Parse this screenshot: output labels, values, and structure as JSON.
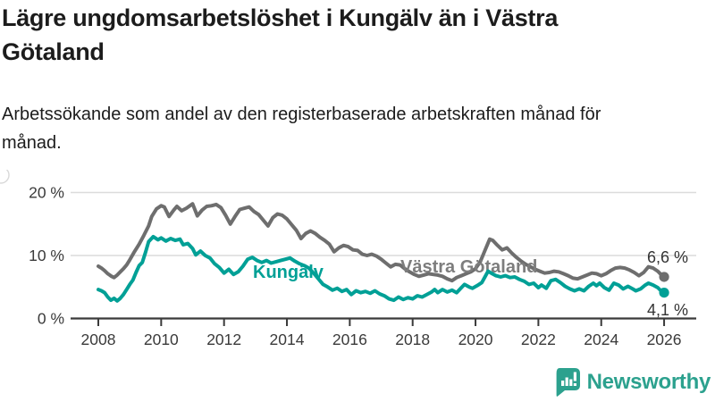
{
  "header": {
    "title": "Lägre ungdomsarbetslöshet i Kungälv än i Västra Götaland",
    "subtitle": "Arbetssökande som andel av den registerbaserade arbetskraften månad för månad."
  },
  "branding": {
    "logo_text": "Newsworthy",
    "logo_icon": "bar-chart-speech-bubble-icon",
    "logo_color": "#2ca18e"
  },
  "chart_data": {
    "type": "line",
    "title": "",
    "xlabel": "",
    "ylabel": "",
    "xlim": [
      2007.1,
      2027.0
    ],
    "ylim": [
      0,
      21
    ],
    "grid": "horizontal",
    "legend_position": "inline-labels",
    "colors": {
      "axis": "#3a3a3a",
      "gridline": "#dcdcdc",
      "tick_label": "#3a3a3a",
      "end_label": "#333333"
    },
    "y_axis": {
      "gridline_ticks": [
        {
          "value": 20,
          "label": "20 %"
        },
        {
          "value": 10,
          "label": "10 %"
        },
        {
          "value": 0,
          "label": "0 %"
        }
      ]
    },
    "x_axis": {
      "ticks": [
        {
          "value": 2008,
          "label": "2008"
        },
        {
          "value": 2010,
          "label": "2010"
        },
        {
          "value": 2012,
          "label": "2012"
        },
        {
          "value": 2014,
          "label": "2014"
        },
        {
          "value": 2016,
          "label": "2016"
        },
        {
          "value": 2018,
          "label": "2018"
        },
        {
          "value": 2020,
          "label": "2020"
        },
        {
          "value": 2022,
          "label": "2022"
        },
        {
          "value": 2024,
          "label": "2024"
        },
        {
          "value": 2026,
          "label": "2026"
        }
      ]
    },
    "series": [
      {
        "name": "Västra Götaland",
        "color": "#6e6e6e",
        "label": {
          "text": "Västra Götaland",
          "x": 448,
          "y": 115,
          "color": "#7d7d7d"
        },
        "end_label": {
          "text": "6,6 %",
          "x": 770,
          "y": 104
        },
        "end_value": 6.6,
        "points": [
          [
            2008.0,
            8.3
          ],
          [
            2008.1,
            8.0
          ],
          [
            2008.2,
            7.6
          ],
          [
            2008.3,
            7.1
          ],
          [
            2008.42,
            6.7
          ],
          [
            2008.5,
            6.5
          ],
          [
            2008.6,
            6.9
          ],
          [
            2008.7,
            7.4
          ],
          [
            2008.8,
            7.9
          ],
          [
            2008.9,
            8.5
          ],
          [
            2009.0,
            9.3
          ],
          [
            2009.15,
            10.6
          ],
          [
            2009.3,
            11.8
          ],
          [
            2009.45,
            13.2
          ],
          [
            2009.6,
            14.7
          ],
          [
            2009.7,
            16.2
          ],
          [
            2009.85,
            17.4
          ],
          [
            2010.0,
            17.9
          ],
          [
            2010.1,
            17.7
          ],
          [
            2010.25,
            16.2
          ],
          [
            2010.4,
            17.2
          ],
          [
            2010.5,
            17.8
          ],
          [
            2010.65,
            17.1
          ],
          [
            2010.8,
            17.5
          ],
          [
            2011.0,
            18.2
          ],
          [
            2011.15,
            16.3
          ],
          [
            2011.3,
            17.2
          ],
          [
            2011.45,
            17.8
          ],
          [
            2011.6,
            17.9
          ],
          [
            2011.75,
            18.1
          ],
          [
            2011.9,
            17.6
          ],
          [
            2012.05,
            16.4
          ],
          [
            2012.2,
            15.0
          ],
          [
            2012.35,
            16.2
          ],
          [
            2012.5,
            17.3
          ],
          [
            2012.65,
            17.5
          ],
          [
            2012.8,
            17.7
          ],
          [
            2012.95,
            17.0
          ],
          [
            2013.1,
            16.5
          ],
          [
            2013.25,
            15.6
          ],
          [
            2013.4,
            14.7
          ],
          [
            2013.55,
            16.0
          ],
          [
            2013.7,
            16.6
          ],
          [
            2013.85,
            16.4
          ],
          [
            2014.0,
            15.8
          ],
          [
            2014.15,
            14.9
          ],
          [
            2014.3,
            14.0
          ],
          [
            2014.45,
            12.7
          ],
          [
            2014.6,
            13.5
          ],
          [
            2014.75,
            13.9
          ],
          [
            2014.9,
            13.5
          ],
          [
            2015.05,
            12.9
          ],
          [
            2015.2,
            12.4
          ],
          [
            2015.35,
            11.8
          ],
          [
            2015.5,
            10.6
          ],
          [
            2015.65,
            11.2
          ],
          [
            2015.8,
            11.6
          ],
          [
            2015.95,
            11.4
          ],
          [
            2016.1,
            10.9
          ],
          [
            2016.25,
            10.8
          ],
          [
            2016.4,
            10.2
          ],
          [
            2016.55,
            10.0
          ],
          [
            2016.7,
            10.2
          ],
          [
            2016.85,
            9.9
          ],
          [
            2017.0,
            9.4
          ],
          [
            2017.15,
            8.8
          ],
          [
            2017.3,
            8.2
          ],
          [
            2017.45,
            8.6
          ],
          [
            2017.6,
            8.5
          ],
          [
            2017.75,
            7.9
          ],
          [
            2017.9,
            7.4
          ],
          [
            2018.05,
            7.0
          ],
          [
            2018.2,
            6.7
          ],
          [
            2018.35,
            6.9
          ],
          [
            2018.5,
            7.1
          ],
          [
            2018.65,
            7.0
          ],
          [
            2018.8,
            6.9
          ],
          [
            2018.95,
            6.7
          ],
          [
            2019.1,
            6.3
          ],
          [
            2019.25,
            6.0
          ],
          [
            2019.4,
            6.5
          ],
          [
            2019.55,
            6.8
          ],
          [
            2019.7,
            7.1
          ],
          [
            2019.85,
            7.4
          ],
          [
            2020.0,
            7.9
          ],
          [
            2020.15,
            9.0
          ],
          [
            2020.3,
            10.8
          ],
          [
            2020.45,
            12.6
          ],
          [
            2020.55,
            12.4
          ],
          [
            2020.7,
            11.6
          ],
          [
            2020.85,
            10.9
          ],
          [
            2021.0,
            11.2
          ],
          [
            2021.15,
            10.4
          ],
          [
            2021.3,
            9.7
          ],
          [
            2021.45,
            9.1
          ],
          [
            2021.6,
            8.6
          ],
          [
            2021.75,
            8.2
          ],
          [
            2021.9,
            7.8
          ],
          [
            2022.05,
            7.5
          ],
          [
            2022.2,
            7.2
          ],
          [
            2022.35,
            7.3
          ],
          [
            2022.5,
            7.5
          ],
          [
            2022.65,
            7.4
          ],
          [
            2022.8,
            7.1
          ],
          [
            2022.95,
            6.8
          ],
          [
            2023.1,
            6.4
          ],
          [
            2023.25,
            6.3
          ],
          [
            2023.4,
            6.6
          ],
          [
            2023.55,
            6.9
          ],
          [
            2023.7,
            7.2
          ],
          [
            2023.85,
            7.1
          ],
          [
            2024.0,
            6.8
          ],
          [
            2024.15,
            7.1
          ],
          [
            2024.3,
            7.6
          ],
          [
            2024.45,
            8.0
          ],
          [
            2024.6,
            8.1
          ],
          [
            2024.75,
            8.0
          ],
          [
            2024.9,
            7.7
          ],
          [
            2025.05,
            7.3
          ],
          [
            2025.2,
            6.8
          ],
          [
            2025.35,
            7.3
          ],
          [
            2025.5,
            8.2
          ],
          [
            2025.65,
            8.0
          ],
          [
            2025.8,
            7.5
          ],
          [
            2025.9,
            7.0
          ],
          [
            2026.0,
            6.6
          ]
        ]
      },
      {
        "name": "Kungälv",
        "color": "#00a096",
        "label": {
          "text": "Kungälv",
          "x": 283,
          "y": 121,
          "color": "#00a096"
        },
        "end_label": {
          "text": "4,1 %",
          "x": 770,
          "y": 163
        },
        "end_value": 4.1,
        "points": [
          [
            2008.0,
            4.6
          ],
          [
            2008.1,
            4.4
          ],
          [
            2008.2,
            4.1
          ],
          [
            2008.3,
            3.4
          ],
          [
            2008.4,
            2.9
          ],
          [
            2008.5,
            3.2
          ],
          [
            2008.6,
            2.8
          ],
          [
            2008.7,
            3.2
          ],
          [
            2008.8,
            3.8
          ],
          [
            2008.9,
            4.6
          ],
          [
            2009.0,
            5.4
          ],
          [
            2009.1,
            6.1
          ],
          [
            2009.2,
            7.3
          ],
          [
            2009.3,
            8.4
          ],
          [
            2009.4,
            8.9
          ],
          [
            2009.5,
            10.5
          ],
          [
            2009.6,
            12.2
          ],
          [
            2009.75,
            13.0
          ],
          [
            2009.9,
            12.5
          ],
          [
            2010.0,
            12.8
          ],
          [
            2010.15,
            12.3
          ],
          [
            2010.3,
            12.7
          ],
          [
            2010.45,
            12.4
          ],
          [
            2010.6,
            12.6
          ],
          [
            2010.7,
            11.7
          ],
          [
            2010.85,
            11.9
          ],
          [
            2011.0,
            11.1
          ],
          [
            2011.1,
            10.1
          ],
          [
            2011.25,
            10.7
          ],
          [
            2011.4,
            10.0
          ],
          [
            2011.55,
            9.6
          ],
          [
            2011.7,
            8.7
          ],
          [
            2011.85,
            8.1
          ],
          [
            2012.0,
            7.2
          ],
          [
            2012.15,
            7.8
          ],
          [
            2012.3,
            7.0
          ],
          [
            2012.45,
            7.4
          ],
          [
            2012.6,
            8.3
          ],
          [
            2012.75,
            9.4
          ],
          [
            2012.9,
            9.7
          ],
          [
            2013.05,
            9.2
          ],
          [
            2013.2,
            8.9
          ],
          [
            2013.35,
            9.2
          ],
          [
            2013.5,
            8.8
          ],
          [
            2013.65,
            9.0
          ],
          [
            2013.8,
            9.2
          ],
          [
            2013.95,
            9.4
          ],
          [
            2014.1,
            9.6
          ],
          [
            2014.25,
            9.1
          ],
          [
            2014.4,
            8.7
          ],
          [
            2014.55,
            8.4
          ],
          [
            2014.7,
            8.0
          ],
          [
            2014.85,
            7.2
          ],
          [
            2015.0,
            6.3
          ],
          [
            2015.15,
            5.4
          ],
          [
            2015.3,
            5.0
          ],
          [
            2015.45,
            4.5
          ],
          [
            2015.6,
            4.8
          ],
          [
            2015.75,
            4.3
          ],
          [
            2015.9,
            4.6
          ],
          [
            2016.05,
            3.8
          ],
          [
            2016.2,
            4.4
          ],
          [
            2016.35,
            4.1
          ],
          [
            2016.5,
            4.3
          ],
          [
            2016.65,
            4.0
          ],
          [
            2016.8,
            4.4
          ],
          [
            2016.95,
            3.9
          ],
          [
            2017.1,
            3.6
          ],
          [
            2017.25,
            3.1
          ],
          [
            2017.4,
            2.9
          ],
          [
            2017.55,
            3.4
          ],
          [
            2017.7,
            3.0
          ],
          [
            2017.85,
            3.3
          ],
          [
            2018.0,
            3.1
          ],
          [
            2018.15,
            3.6
          ],
          [
            2018.3,
            3.4
          ],
          [
            2018.45,
            3.8
          ],
          [
            2018.6,
            4.2
          ],
          [
            2018.7,
            4.6
          ],
          [
            2018.8,
            4.1
          ],
          [
            2018.95,
            4.6
          ],
          [
            2019.1,
            4.2
          ],
          [
            2019.25,
            4.5
          ],
          [
            2019.4,
            4.1
          ],
          [
            2019.55,
            4.9
          ],
          [
            2019.65,
            5.4
          ],
          [
            2019.8,
            5.0
          ],
          [
            2019.9,
            4.8
          ],
          [
            2020.05,
            5.2
          ],
          [
            2020.2,
            5.7
          ],
          [
            2020.3,
            6.6
          ],
          [
            2020.4,
            7.5
          ],
          [
            2020.5,
            7.2
          ],
          [
            2020.65,
            6.8
          ],
          [
            2020.8,
            6.6
          ],
          [
            2020.95,
            6.8
          ],
          [
            2021.1,
            6.5
          ],
          [
            2021.25,
            6.6
          ],
          [
            2021.4,
            6.2
          ],
          [
            2021.55,
            5.9
          ],
          [
            2021.7,
            5.4
          ],
          [
            2021.85,
            5.6
          ],
          [
            2022.0,
            4.9
          ],
          [
            2022.1,
            5.3
          ],
          [
            2022.25,
            4.8
          ],
          [
            2022.4,
            6.0
          ],
          [
            2022.55,
            6.2
          ],
          [
            2022.7,
            5.7
          ],
          [
            2022.85,
            5.1
          ],
          [
            2023.0,
            4.7
          ],
          [
            2023.15,
            4.4
          ],
          [
            2023.3,
            4.7
          ],
          [
            2023.45,
            4.4
          ],
          [
            2023.6,
            5.1
          ],
          [
            2023.75,
            5.6
          ],
          [
            2023.85,
            5.2
          ],
          [
            2023.95,
            5.6
          ],
          [
            2024.1,
            4.9
          ],
          [
            2024.25,
            4.5
          ],
          [
            2024.4,
            5.6
          ],
          [
            2024.55,
            5.3
          ],
          [
            2024.7,
            4.7
          ],
          [
            2024.85,
            5.1
          ],
          [
            2025.0,
            4.7
          ],
          [
            2025.1,
            4.4
          ],
          [
            2025.25,
            4.7
          ],
          [
            2025.4,
            5.3
          ],
          [
            2025.5,
            5.6
          ],
          [
            2025.65,
            5.3
          ],
          [
            2025.8,
            4.9
          ],
          [
            2025.9,
            4.4
          ],
          [
            2026.0,
            4.1
          ]
        ]
      }
    ]
  }
}
